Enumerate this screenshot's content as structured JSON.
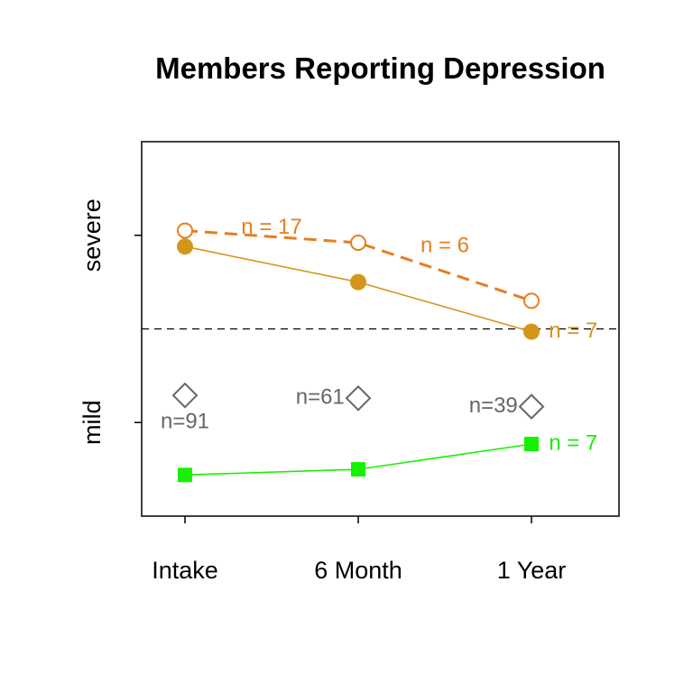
{
  "chart_data": {
    "type": "line",
    "title": "Members Reporting Depression",
    "categories": [
      "Intake",
      "6 Month",
      "1 Year"
    ],
    "y_tick_labels": [
      "severe",
      "mild"
    ],
    "ylim": [
      0,
      4
    ],
    "threshold": 2,
    "colors": {
      "orange": "#e87d1e",
      "gold": "#d4961a",
      "green": "#17f000",
      "gray": "#666666"
    },
    "series": [
      {
        "key": "orange_open",
        "values": [
          3.05,
          2.92,
          2.3
        ],
        "style": "dashed-open-circle",
        "color": "#e87d1e"
      },
      {
        "key": "gold_filled",
        "values": [
          2.88,
          2.5,
          1.97
        ],
        "style": "solid-filled-circle",
        "color": "#d4961a"
      },
      {
        "key": "green_square",
        "values": [
          0.44,
          0.5,
          0.77
        ],
        "style": "solid-filled-square",
        "color": "#17f000"
      },
      {
        "key": "gray_diamond",
        "values": [
          1.29,
          1.26,
          1.17
        ],
        "style": "points-open-diamond",
        "color": "#666666"
      }
    ],
    "annotations": [
      {
        "text": "n = 17",
        "x": 0.5,
        "y": 3.08,
        "color": "#e87d1e",
        "anchor": "middle"
      },
      {
        "text": "n = 6",
        "x": 1.5,
        "y": 2.88,
        "color": "#e87d1e",
        "anchor": "middle"
      },
      {
        "text": "n = 7",
        "x": 2.1,
        "y": 1.97,
        "color": "#d4961a",
        "anchor": "start"
      },
      {
        "text": "n = 7",
        "x": 2.1,
        "y": 0.77,
        "color": "#17f000",
        "anchor": "start"
      },
      {
        "text": "n=91",
        "x": 0,
        "y": 1.0,
        "color": "#666666",
        "anchor": "middle"
      },
      {
        "text": "n=61",
        "x": 0.78,
        "y": 1.26,
        "color": "#666666",
        "anchor": "middle"
      },
      {
        "text": "n=39",
        "x": 1.78,
        "y": 1.17,
        "color": "#666666",
        "anchor": "middle"
      }
    ]
  }
}
